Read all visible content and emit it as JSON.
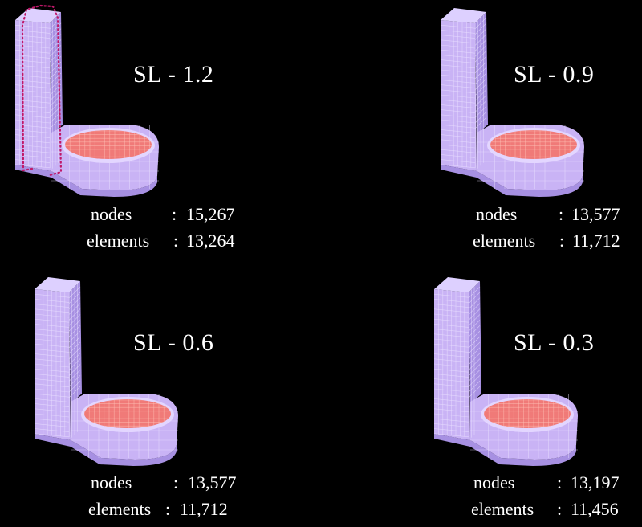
{
  "colors": {
    "background": "#000000",
    "body": "#c9b3f5",
    "body_dark": "#a790e2",
    "mesh": "#e9dfff",
    "cap": "#f07a78",
    "cap_mesh": "#ffc4b8",
    "dotted_path": "#c0186a"
  },
  "panels": [
    {
      "label": "SL - 1.2",
      "nodes_label": "nodes",
      "nodes": "15,267",
      "elements_label": "elements",
      "elements": "13,264",
      "colon": ":"
    },
    {
      "label": "SL - 0.9",
      "nodes_label": "nodes",
      "nodes": "13,577",
      "elements_label": "elements",
      "elements": "11,712",
      "colon": ":"
    },
    {
      "label": "SL - 0.6",
      "nodes_label": "nodes",
      "nodes": "13,577",
      "elements_label": "elements",
      "elements": "11,712",
      "colon": ":"
    },
    {
      "label": "SL - 0.3",
      "nodes_label": "nodes",
      "nodes": "13,197",
      "elements_label": "elements",
      "elements": "11,456",
      "colon": ":"
    }
  ]
}
